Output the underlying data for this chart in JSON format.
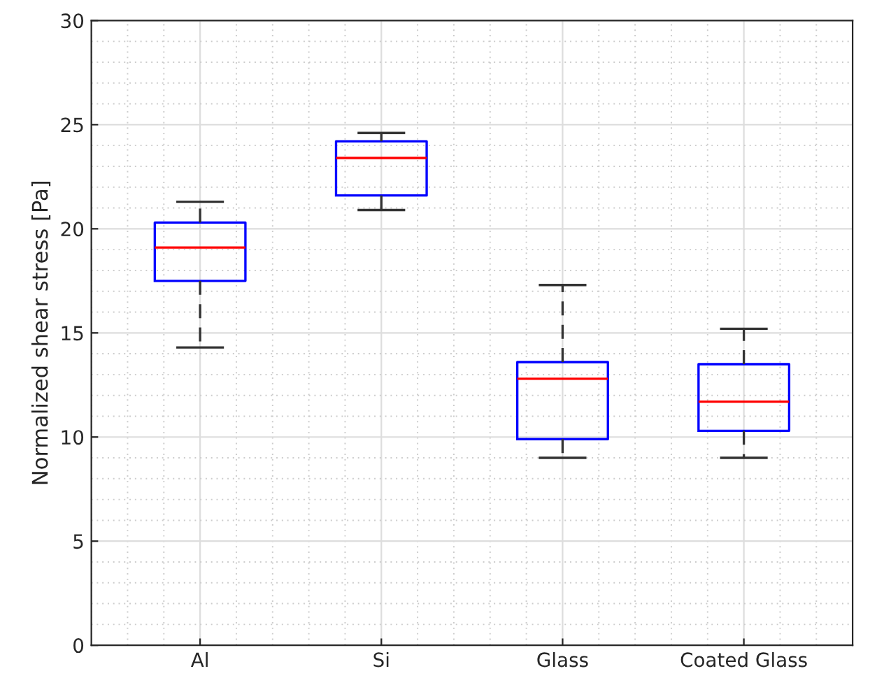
{
  "chart_data": {
    "type": "box",
    "ylabel": "Normalized shear stress [Pa]",
    "categories": [
      "Al",
      "Si",
      "Glass",
      "Coated Glass"
    ],
    "boxes": [
      {
        "low": 14.3,
        "q1": 17.5,
        "median": 19.1,
        "q3": 20.3,
        "high": 21.3
      },
      {
        "low": 20.9,
        "q1": 21.6,
        "median": 23.4,
        "q3": 24.2,
        "high": 24.6
      },
      {
        "low": 9.0,
        "q1": 9.9,
        "median": 12.8,
        "q3": 13.6,
        "high": 17.3
      },
      {
        "low": 9.0,
        "q1": 10.3,
        "median": 11.7,
        "q3": 13.5,
        "high": 15.2
      }
    ],
    "color": "#0000ff",
    "ylim": [
      0,
      30
    ],
    "yticks": [
      0,
      5,
      10,
      15,
      20,
      25,
      30
    ],
    "grid": true
  }
}
